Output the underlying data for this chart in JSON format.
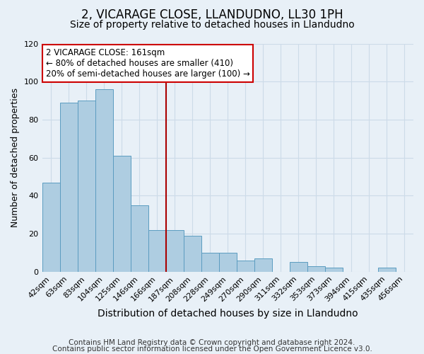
{
  "title": "2, VICARAGE CLOSE, LLANDUDNO, LL30 1PH",
  "subtitle": "Size of property relative to detached houses in Llandudno",
  "xlabel": "Distribution of detached houses by size in Llandudno",
  "ylabel": "Number of detached properties",
  "bar_labels": [
    "42sqm",
    "63sqm",
    "83sqm",
    "104sqm",
    "125sqm",
    "146sqm",
    "166sqm",
    "187sqm",
    "208sqm",
    "228sqm",
    "249sqm",
    "270sqm",
    "290sqm",
    "311sqm",
    "332sqm",
    "353sqm",
    "373sqm",
    "394sqm",
    "415sqm",
    "435sqm",
    "456sqm"
  ],
  "bar_values": [
    47,
    89,
    90,
    96,
    61,
    35,
    22,
    22,
    19,
    10,
    10,
    6,
    7,
    0,
    5,
    3,
    2,
    0,
    0,
    2,
    0
  ],
  "bar_color": "#aecde1",
  "bar_edge_color": "#5b9cc0",
  "grid_color": "#ccdbe8",
  "bg_color": "#e8f0f7",
  "vline_color": "#aa0000",
  "annotation_title": "2 VICARAGE CLOSE: 161sqm",
  "annotation_line1": "← 80% of detached houses are smaller (410)",
  "annotation_line2": "20% of semi-detached houses are larger (100) →",
  "annotation_box_color": "#ffffff",
  "annotation_box_edge": "#cc0000",
  "footer1": "Contains HM Land Registry data © Crown copyright and database right 2024.",
  "footer2": "Contains public sector information licensed under the Open Government Licence v3.0.",
  "ylim": [
    0,
    120
  ],
  "yticks": [
    0,
    20,
    40,
    60,
    80,
    100,
    120
  ],
  "title_fontsize": 12,
  "subtitle_fontsize": 10,
  "xlabel_fontsize": 10,
  "ylabel_fontsize": 9,
  "tick_fontsize": 8,
  "footer_fontsize": 7.5,
  "ann_fontsize": 8.5
}
